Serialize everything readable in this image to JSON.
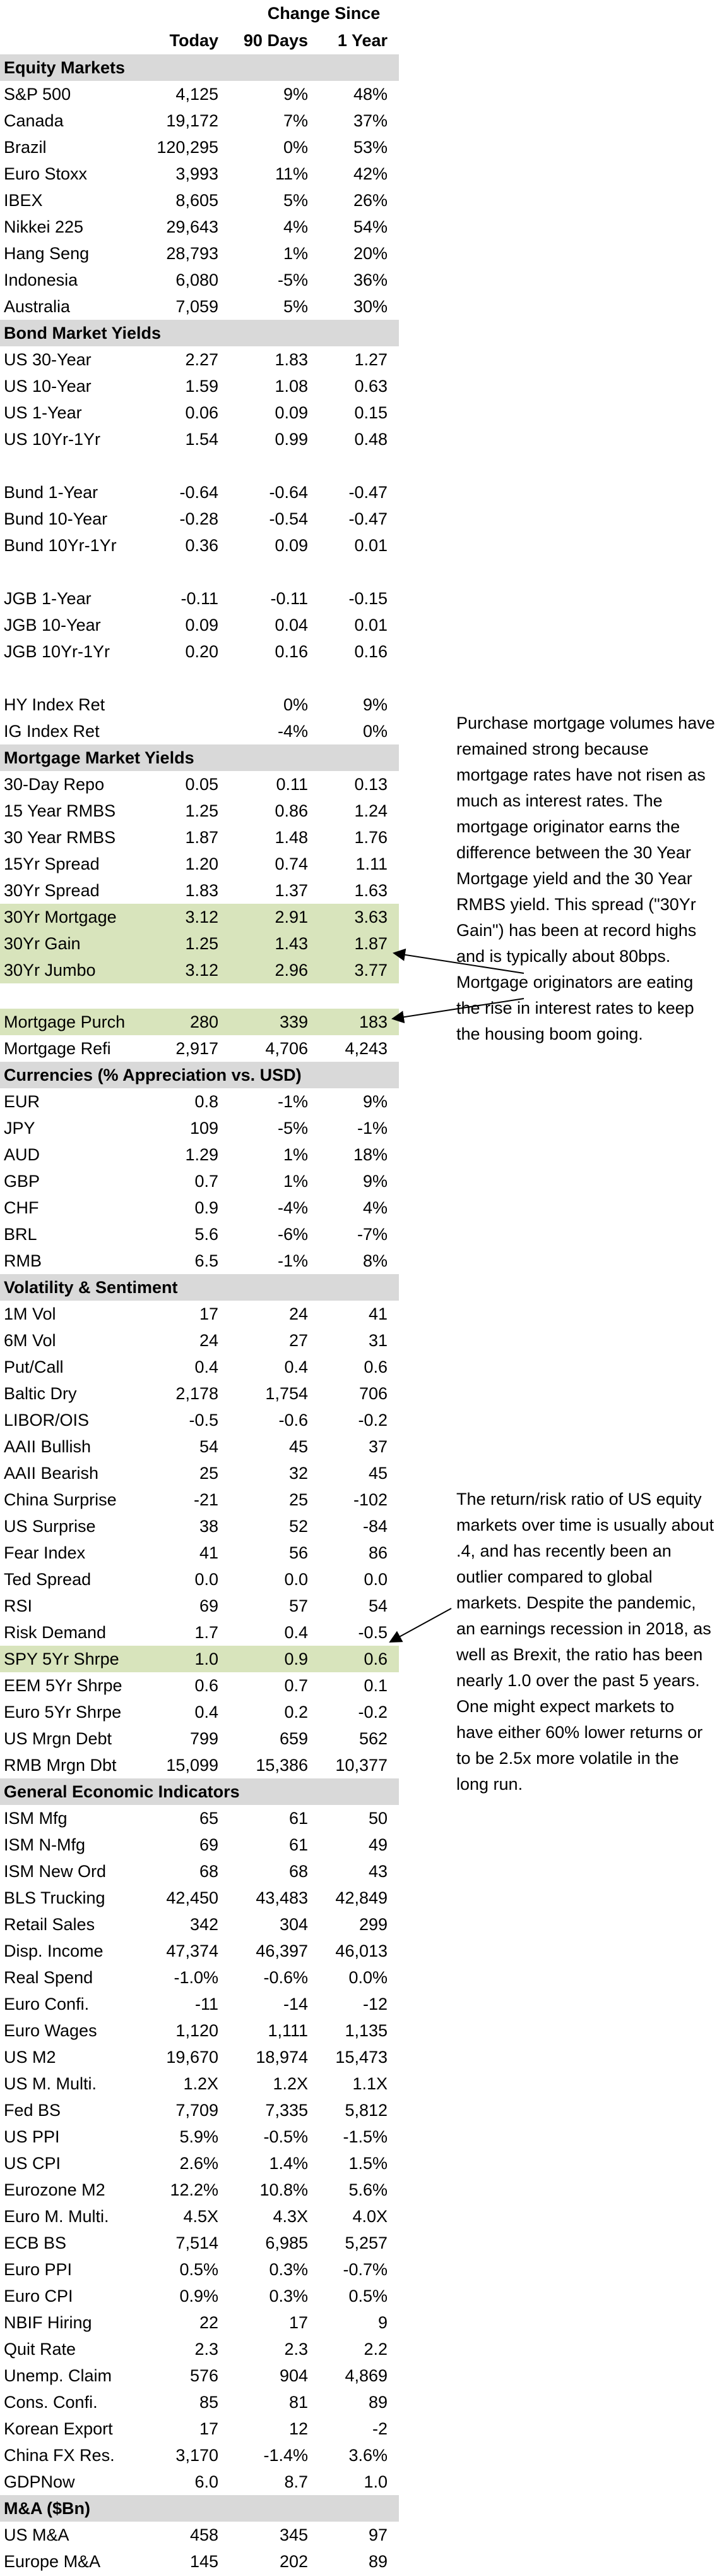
{
  "header": {
    "change_since": "Change Since",
    "col_today": "Today",
    "col_90days": "90 Days",
    "col_1year": "1 Year"
  },
  "sections": [
    {
      "title": "Equity Markets",
      "rows": [
        {
          "label": "S&P 500",
          "today": "4,125",
          "d90": "9%",
          "y1": "48%"
        },
        {
          "label": "Canada",
          "today": "19,172",
          "d90": "7%",
          "y1": "37%"
        },
        {
          "label": "Brazil",
          "today": "120,295",
          "d90": "0%",
          "y1": "53%"
        },
        {
          "label": "Euro Stoxx",
          "today": "3,993",
          "d90": "11%",
          "y1": "42%"
        },
        {
          "label": "IBEX",
          "today": "8,605",
          "d90": "5%",
          "y1": "26%"
        },
        {
          "label": "Nikkei 225",
          "today": "29,643",
          "d90": "4%",
          "y1": "54%"
        },
        {
          "label": "Hang Seng",
          "today": "28,793",
          "d90": "1%",
          "y1": "20%"
        },
        {
          "label": "Indonesia",
          "today": "6,080",
          "d90": "-5%",
          "y1": "36%"
        },
        {
          "label": "Australia",
          "today": "7,059",
          "d90": "5%",
          "y1": "30%"
        }
      ]
    },
    {
      "title": "Bond Market Yields",
      "rows": [
        {
          "label": "US 30-Year",
          "today": "2.27",
          "d90": "1.83",
          "y1": "1.27"
        },
        {
          "label": "US 10-Year",
          "today": "1.59",
          "d90": "1.08",
          "y1": "0.63"
        },
        {
          "label": "US 1-Year",
          "today": "0.06",
          "d90": "0.09",
          "y1": "0.15"
        },
        {
          "label": "US 10Yr-1Yr",
          "today": "1.54",
          "d90": "0.99",
          "y1": "0.48"
        },
        {
          "blank": true
        },
        {
          "label": "Bund 1-Year",
          "today": "-0.64",
          "d90": "-0.64",
          "y1": "-0.47"
        },
        {
          "label": "Bund 10-Year",
          "today": "-0.28",
          "d90": "-0.54",
          "y1": "-0.47"
        },
        {
          "label": "Bund 10Yr-1Yr",
          "today": "0.36",
          "d90": "0.09",
          "y1": "0.01"
        },
        {
          "blank": true
        },
        {
          "label": "JGB 1-Year",
          "today": "-0.11",
          "d90": "-0.11",
          "y1": "-0.15"
        },
        {
          "label": "JGB 10-Year",
          "today": "0.09",
          "d90": "0.04",
          "y1": "0.01"
        },
        {
          "label": "JGB 10Yr-1Yr",
          "today": "0.20",
          "d90": "0.16",
          "y1": "0.16"
        },
        {
          "blank": true
        },
        {
          "label": "HY Index Ret",
          "today": "",
          "d90": "0%",
          "y1": "9%"
        },
        {
          "label": "IG Index Ret",
          "today": "",
          "d90": "-4%",
          "y1": "0%"
        }
      ]
    },
    {
      "title": "Mortgage Market Yields",
      "rows": [
        {
          "label": "30-Day Repo",
          "today": "0.05",
          "d90": "0.11",
          "y1": "0.13"
        },
        {
          "label": "15 Year RMBS",
          "today": "1.25",
          "d90": "0.86",
          "y1": "1.24"
        },
        {
          "label": "30 Year RMBS",
          "today": "1.87",
          "d90": "1.48",
          "y1": "1.76"
        },
        {
          "label": "15Yr Spread",
          "today": "1.20",
          "d90": "0.74",
          "y1": "1.11"
        },
        {
          "label": "30Yr Spread",
          "today": "1.83",
          "d90": "1.37",
          "y1": "1.63"
        },
        {
          "label": "30Yr Mortgage",
          "today": "3.12",
          "d90": "2.91",
          "y1": "3.63",
          "hl": true
        },
        {
          "label": "30Yr Gain",
          "today": "1.25",
          "d90": "1.43",
          "y1": "1.87",
          "hl": true
        },
        {
          "label": "30Yr Jumbo",
          "today": "3.12",
          "d90": "2.96",
          "y1": "3.77",
          "hl": true
        },
        {
          "gap": true
        },
        {
          "label": "Mortgage Purch",
          "today": "280",
          "d90": "339",
          "y1": "183",
          "hl": true
        },
        {
          "label": "Mortgage Refi",
          "today": "2,917",
          "d90": "4,706",
          "y1": "4,243"
        }
      ]
    },
    {
      "title": "Currencies (% Appreciation vs. USD)",
      "rows": [
        {
          "label": "EUR",
          "today": "0.8",
          "d90": "-1%",
          "y1": "9%"
        },
        {
          "label": "JPY",
          "today": "109",
          "d90": "-5%",
          "y1": "-1%"
        },
        {
          "label": "AUD",
          "today": "1.29",
          "d90": "1%",
          "y1": "18%"
        },
        {
          "label": "GBP",
          "today": "0.7",
          "d90": "1%",
          "y1": "9%"
        },
        {
          "label": "CHF",
          "today": "0.9",
          "d90": "-4%",
          "y1": "4%"
        },
        {
          "label": "BRL",
          "today": "5.6",
          "d90": "-6%",
          "y1": "-7%"
        },
        {
          "label": "RMB",
          "today": "6.5",
          "d90": "-1%",
          "y1": "8%"
        }
      ]
    },
    {
      "title": "Volatility & Sentiment",
      "rows": [
        {
          "label": "1M Vol",
          "today": "17",
          "d90": "24",
          "y1": "41"
        },
        {
          "label": "6M Vol",
          "today": "24",
          "d90": "27",
          "y1": "31"
        },
        {
          "label": "Put/Call",
          "today": "0.4",
          "d90": "0.4",
          "y1": "0.6"
        },
        {
          "label": "Baltic Dry",
          "today": "2,178",
          "d90": "1,754",
          "y1": "706"
        },
        {
          "label": "LIBOR/OIS",
          "today": "-0.5",
          "d90": "-0.6",
          "y1": "-0.2"
        },
        {
          "label": "AAII Bullish",
          "today": "54",
          "d90": "45",
          "y1": "37"
        },
        {
          "label": "AAII Bearish",
          "today": "25",
          "d90": "32",
          "y1": "45"
        },
        {
          "label": "China Surprise",
          "today": "-21",
          "d90": "25",
          "y1": "-102"
        },
        {
          "label": "US Surprise",
          "today": "38",
          "d90": "52",
          "y1": "-84"
        },
        {
          "label": "Fear Index",
          "today": "41",
          "d90": "56",
          "y1": "86"
        },
        {
          "label": "Ted Spread",
          "today": "0.0",
          "d90": "0.0",
          "y1": "0.0"
        },
        {
          "label": "RSI",
          "today": "69",
          "d90": "57",
          "y1": "54"
        },
        {
          "label": "Risk Demand",
          "today": "1.7",
          "d90": "0.4",
          "y1": "-0.5"
        },
        {
          "label": "SPY 5Yr Shrpe",
          "today": "1.0",
          "d90": "0.9",
          "y1": "0.6",
          "hl": true
        },
        {
          "label": "EEM 5Yr Shrpe",
          "today": "0.6",
          "d90": "0.7",
          "y1": "0.1"
        },
        {
          "label": "Euro 5Yr Shrpe",
          "today": "0.4",
          "d90": "0.2",
          "y1": "-0.2"
        },
        {
          "label": "US Mrgn Debt",
          "today": "799",
          "d90": "659",
          "y1": "562"
        },
        {
          "label": "RMB Mrgn Dbt",
          "today": "15,099",
          "d90": "15,386",
          "y1": "10,377"
        }
      ]
    },
    {
      "title": "General Economic Indicators",
      "rows": [
        {
          "label": "ISM Mfg",
          "today": "65",
          "d90": "61",
          "y1": "50"
        },
        {
          "label": "ISM N-Mfg",
          "today": "69",
          "d90": "61",
          "y1": "49"
        },
        {
          "label": "ISM New Ord",
          "today": "68",
          "d90": "68",
          "y1": "43"
        },
        {
          "label": "BLS Trucking",
          "today": "42,450",
          "d90": "43,483",
          "y1": "42,849"
        },
        {
          "label": "Retail Sales",
          "today": "342",
          "d90": "304",
          "y1": "299"
        },
        {
          "label": "Disp. Income",
          "today": "47,374",
          "d90": "46,397",
          "y1": "46,013"
        },
        {
          "label": "Real Spend",
          "today": "-1.0%",
          "d90": "-0.6%",
          "y1": "0.0%"
        },
        {
          "label": "Euro Confi.",
          "today": "-11",
          "d90": "-14",
          "y1": "-12"
        },
        {
          "label": "Euro Wages",
          "today": "1,120",
          "d90": "1,111",
          "y1": "1,135"
        },
        {
          "label": "US M2",
          "today": "19,670",
          "d90": "18,974",
          "y1": "15,473"
        },
        {
          "label": "US M. Multi.",
          "today": "1.2X",
          "d90": "1.2X",
          "y1": "1.1X"
        },
        {
          "label": "Fed BS",
          "today": "7,709",
          "d90": "7,335",
          "y1": "5,812"
        },
        {
          "label": "US PPI",
          "today": "5.9%",
          "d90": "-0.5%",
          "y1": "-1.5%"
        },
        {
          "label": "US CPI",
          "today": "2.6%",
          "d90": "1.4%",
          "y1": "1.5%"
        },
        {
          "label": "Eurozone M2",
          "today": "12.2%",
          "d90": "10.8%",
          "y1": "5.6%"
        },
        {
          "label": "Euro M. Multi.",
          "today": "4.5X",
          "d90": "4.3X",
          "y1": "4.0X"
        },
        {
          "label": "ECB BS",
          "today": "7,514",
          "d90": "6,985",
          "y1": "5,257"
        },
        {
          "label": "Euro PPI",
          "today": "0.5%",
          "d90": "0.3%",
          "y1": "-0.7%"
        },
        {
          "label": "Euro CPI",
          "today": "0.9%",
          "d90": "0.3%",
          "y1": "0.5%"
        },
        {
          "label": "NBIF Hiring",
          "today": "22",
          "d90": "17",
          "y1": "9"
        },
        {
          "label": "Quit Rate",
          "today": "2.3",
          "d90": "2.3",
          "y1": "2.2"
        },
        {
          "label": "Unemp. Claim",
          "today": "576",
          "d90": "904",
          "y1": "4,869"
        },
        {
          "label": "Cons. Confi.",
          "today": "85",
          "d90": "81",
          "y1": "89"
        },
        {
          "label": "Korean Export",
          "today": "17",
          "d90": "12",
          "y1": "-2"
        },
        {
          "label": "China FX Res.",
          "today": "3,170",
          "d90": "-1.4%",
          "y1": "3.6%"
        },
        {
          "label": "GDPNow",
          "today": "6.0",
          "d90": "8.7",
          "y1": "1.0"
        }
      ]
    },
    {
      "title": "M&A ($Bn)",
      "rows": [
        {
          "label": "US M&A",
          "today": "458",
          "d90": "345",
          "y1": "97"
        },
        {
          "label": "Europe M&A",
          "today": "145",
          "d90": "202",
          "y1": "89"
        }
      ]
    }
  ],
  "notes": {
    "mortgage": "Purchase mortgage volumes have remained strong because mortgage rates have not risen as much as interest rates.  The mortgage originator earns the difference between the 30 Year Mortgage yield and the 30 Year RMBS yield.  This spread (\"30Yr Gain\") has been at record highs and is typically about 80bps.  Mortgage originators are eating the rise in interest rates to keep the housing boom going.",
    "sharpe": "The return/risk ratio of US equity markets over time is usually about .4, and has recently been an outlier compared to global markets. Despite the pandemic, an earnings recession in 2018, as well as Brexit, the ratio has been nearly 1.0 over the past 5 years.  One might expect markets to have either 60% lower returns or to be 2.5x more volatile in the long run."
  }
}
